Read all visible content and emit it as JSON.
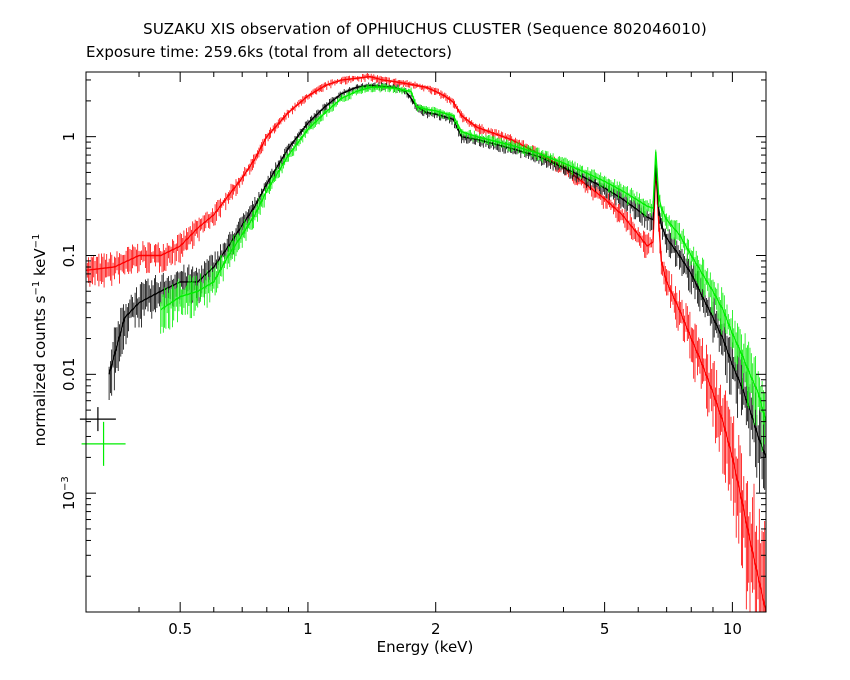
{
  "chart_data": {
    "type": "line",
    "title": "SUZAKU XIS observation of OPHIUCHUS CLUSTER (Sequence 802046010)",
    "subtitle": "Exposure time: 259.6ks (total from all detectors)",
    "xlabel": "Energy (keV)",
    "ylabel": "normalized counts s",
    "ylabel_sup1": "−1",
    "ylabel_mid": " keV",
    "ylabel_sup2": "−1",
    "x_scale": "log",
    "y_scale": "log",
    "xlim": [
      0.3,
      12
    ],
    "ylim": [
      0.0001,
      3.5
    ],
    "x_ticks": [
      {
        "value": 0.5,
        "label": "0.5"
      },
      {
        "value": 1,
        "label": "1"
      },
      {
        "value": 2,
        "label": "2"
      },
      {
        "value": 5,
        "label": "5"
      },
      {
        "value": 10,
        "label": "10"
      }
    ],
    "y_ticks": [
      {
        "value": 1,
        "label": "1",
        "sup": ""
      },
      {
        "value": 0.1,
        "label": "0.1",
        "sup": ""
      },
      {
        "value": 0.01,
        "label": "0.01",
        "sup": ""
      },
      {
        "value": 0.001,
        "label": "10",
        "sup": "−3"
      }
    ],
    "grid": false,
    "legend": "none",
    "series": [
      {
        "color": "#ff0000",
        "x": [
          0.3,
          0.35,
          0.4,
          0.45,
          0.5,
          0.55,
          0.6,
          0.65,
          0.7,
          0.75,
          0.8,
          0.9,
          1.0,
          1.1,
          1.2,
          1.3,
          1.4,
          1.5,
          1.6,
          1.7,
          1.8,
          1.9,
          2.0,
          2.1,
          2.2,
          2.3,
          2.5,
          3.0,
          3.5,
          4.0,
          4.5,
          5.0,
          5.5,
          6.0,
          6.3,
          6.5,
          6.6,
          6.7,
          6.8,
          7.0,
          7.5,
          8.0,
          8.5,
          9.0,
          9.5,
          10.0,
          10.5,
          11.0,
          12.0
        ],
        "y": [
          0.075,
          0.08,
          0.1,
          0.1,
          0.12,
          0.17,
          0.22,
          0.32,
          0.45,
          0.65,
          1.0,
          1.6,
          2.2,
          2.7,
          3.0,
          3.1,
          3.2,
          3.0,
          2.9,
          2.8,
          2.7,
          2.6,
          2.4,
          2.2,
          1.95,
          1.5,
          1.2,
          0.95,
          0.72,
          0.55,
          0.4,
          0.3,
          0.22,
          0.15,
          0.12,
          0.13,
          0.55,
          0.2,
          0.09,
          0.06,
          0.035,
          0.02,
          0.012,
          0.007,
          0.004,
          0.002,
          0.0009,
          0.0004,
          0.0001
        ]
      },
      {
        "color": "#000000",
        "x": [
          0.34,
          0.37,
          0.4,
          0.45,
          0.5,
          0.55,
          0.6,
          0.65,
          0.7,
          0.75,
          0.8,
          0.9,
          1.0,
          1.1,
          1.2,
          1.3,
          1.4,
          1.5,
          1.6,
          1.7,
          1.75,
          1.8,
          1.85,
          1.9,
          2.0,
          2.2,
          2.3,
          2.5,
          3.0,
          3.5,
          4.0,
          4.5,
          5.0,
          5.5,
          6.0,
          6.3,
          6.5,
          6.6,
          6.7,
          6.8,
          7.0,
          7.5,
          8.0,
          8.5,
          9.0,
          9.5,
          10.0,
          10.5,
          11.0,
          11.5,
          12.0
        ],
        "y": [
          0.01,
          0.03,
          0.04,
          0.05,
          0.06,
          0.06,
          0.08,
          0.12,
          0.18,
          0.26,
          0.4,
          0.8,
          1.3,
          1.8,
          2.3,
          2.6,
          2.7,
          2.65,
          2.6,
          2.4,
          2.1,
          1.8,
          1.7,
          1.6,
          1.55,
          1.4,
          1.0,
          0.95,
          0.8,
          0.68,
          0.55,
          0.45,
          0.37,
          0.3,
          0.24,
          0.21,
          0.2,
          0.6,
          0.25,
          0.18,
          0.14,
          0.1,
          0.07,
          0.045,
          0.03,
          0.02,
          0.012,
          0.008,
          0.005,
          0.003,
          0.002
        ]
      },
      {
        "color": "#00ee00",
        "x": [
          0.45,
          0.5,
          0.55,
          0.6,
          0.65,
          0.7,
          0.75,
          0.8,
          0.9,
          1.0,
          1.1,
          1.2,
          1.3,
          1.4,
          1.5,
          1.6,
          1.7,
          1.75,
          1.8,
          1.85,
          1.9,
          2.0,
          2.2,
          2.3,
          2.5,
          3.0,
          3.5,
          4.0,
          4.5,
          5.0,
          5.5,
          6.0,
          6.3,
          6.5,
          6.6,
          6.7,
          6.8,
          7.0,
          7.5,
          8.0,
          8.5,
          9.0,
          9.5,
          10.0,
          10.5,
          11.0,
          11.5,
          12.0
        ],
        "y": [
          0.035,
          0.045,
          0.05,
          0.06,
          0.1,
          0.15,
          0.22,
          0.35,
          0.7,
          1.15,
          1.6,
          2.1,
          2.4,
          2.6,
          2.6,
          2.55,
          2.45,
          2.4,
          1.8,
          1.75,
          1.7,
          1.65,
          1.5,
          1.1,
          1.0,
          0.85,
          0.72,
          0.6,
          0.5,
          0.42,
          0.35,
          0.29,
          0.26,
          0.25,
          0.75,
          0.32,
          0.25,
          0.2,
          0.15,
          0.1,
          0.07,
          0.05,
          0.035,
          0.022,
          0.015,
          0.01,
          0.007,
          0.004
        ]
      }
    ],
    "legend_markers": [
      {
        "color": "#000000",
        "x": 0.32,
        "y": 0.0042,
        "size": "small"
      },
      {
        "color": "#00ee00",
        "x": 0.33,
        "y": 0.0026,
        "size": "large"
      }
    ]
  }
}
